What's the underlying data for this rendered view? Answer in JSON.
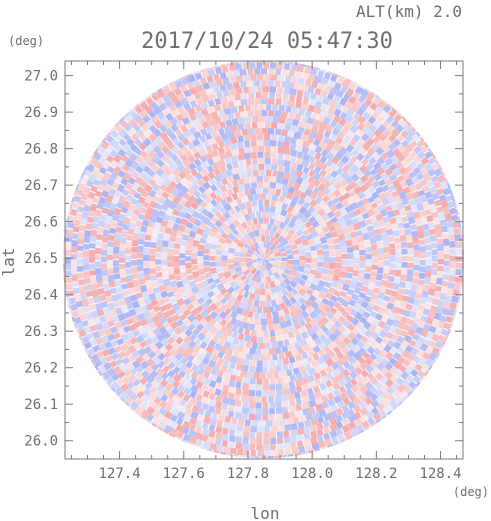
{
  "header": {
    "altitude_label": "ALT(km) 2.0",
    "timestamp": "2017/10/24 05:47:30"
  },
  "chart_data": {
    "type": "heatmap",
    "title": "2017/10/24 05:47:30",
    "subtitle": "ALT(km) 2.0",
    "xlabel": "lon",
    "ylabel": "lat",
    "x_unit": "(deg)",
    "y_unit": "(deg)",
    "xlim": [
      127.23,
      128.47
    ],
    "ylim": [
      25.95,
      27.04
    ],
    "x_ticks": [
      127.4,
      127.6,
      127.8,
      128.0,
      128.2,
      128.4
    ],
    "x_tick_labels": [
      "127.4",
      "127.6",
      "127.8",
      "128.0",
      "128.2",
      "128.4"
    ],
    "y_ticks": [
      26.0,
      26.1,
      26.2,
      26.3,
      26.4,
      26.5,
      26.6,
      26.7,
      26.8,
      26.9,
      27.0
    ],
    "y_tick_labels": [
      "26.0",
      "26.1",
      "26.2",
      "26.3",
      "26.4",
      "26.5",
      "26.6",
      "26.7",
      "26.8",
      "26.9",
      "27.0"
    ],
    "radar_center": {
      "lon": 127.848,
      "lat": 26.497
    },
    "radar_range_deg": {
      "lon": 0.625,
      "lat": 0.545
    },
    "grid": false,
    "colors": {
      "positive": "#f4a6a6",
      "negative": "#aab4f2",
      "zero": "#ffffff"
    }
  }
}
